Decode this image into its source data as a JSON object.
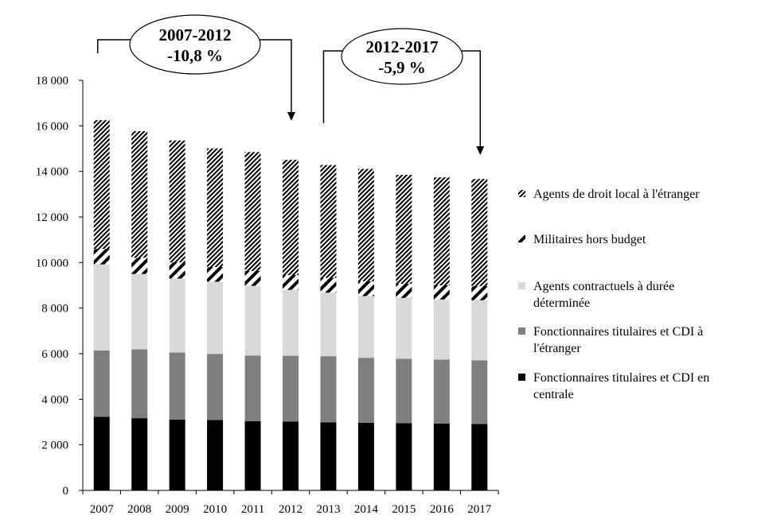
{
  "chart_data": {
    "type": "bar",
    "stacked": true,
    "categories": [
      "2007",
      "2008",
      "2009",
      "2010",
      "2011",
      "2012",
      "2013",
      "2014",
      "2015",
      "2016",
      "2017"
    ],
    "y_ticks": [
      "0",
      "2 000",
      "4 000",
      "6 000",
      "8 000",
      "10 000",
      "12 000",
      "14 000",
      "16 000",
      "18 000"
    ],
    "ylim": [
      0,
      18000
    ],
    "series": [
      {
        "name": "Fonctionnaires titulaires et CDI en centrale",
        "label_lines": [
          "Fonctionnaires titulaires et CDI en",
          "centrale"
        ],
        "fill": "#000000",
        "values": [
          3230,
          3170,
          3110,
          3090,
          3040,
          3020,
          2990,
          2970,
          2950,
          2930,
          2920
        ]
      },
      {
        "name": "Fonctionnaires titulaires et CDI à l'étranger",
        "label_lines": [
          "Fonctionnaires titulaires et CDI à",
          "l'étranger"
        ],
        "fill": "#7f7f7f",
        "values": [
          2910,
          3020,
          2940,
          2900,
          2880,
          2890,
          2900,
          2850,
          2830,
          2810,
          2790
        ]
      },
      {
        "name": "Agents contractuels à durée déterminée",
        "label_lines": [
          "Agents contractuels à durée",
          "déterminée"
        ],
        "fill": "#d9d9d9",
        "values": [
          3780,
          3310,
          3250,
          3170,
          3060,
          2890,
          2790,
          2710,
          2670,
          2640,
          2640
        ]
      },
      {
        "name": "Militaires hors budget",
        "label_lines": [
          "Militaires hors budget"
        ],
        "fill": "pattern-wide",
        "values": [
          680,
          710,
          710,
          640,
          650,
          650,
          650,
          650,
          620,
          620,
          620
        ]
      },
      {
        "name": "Agents de droit local à l'étranger",
        "label_lines": [
          "Agents de droit local à l'étranger"
        ],
        "fill": "pattern-dense",
        "values": [
          5650,
          5560,
          5350,
          5210,
          5220,
          5060,
          4950,
          4930,
          4780,
          4740,
          4700
        ]
      }
    ],
    "legend_order": [
      4,
      3,
      2,
      1,
      0
    ],
    "legend_position": "right",
    "annotations": [
      {
        "line1": "2007-2012",
        "line2": "-10,8 %",
        "from": "2007",
        "to": "2012"
      },
      {
        "line1": "2012-2017",
        "line2": "-5,9 %",
        "from": "2013",
        "to": "2017"
      }
    ]
  }
}
